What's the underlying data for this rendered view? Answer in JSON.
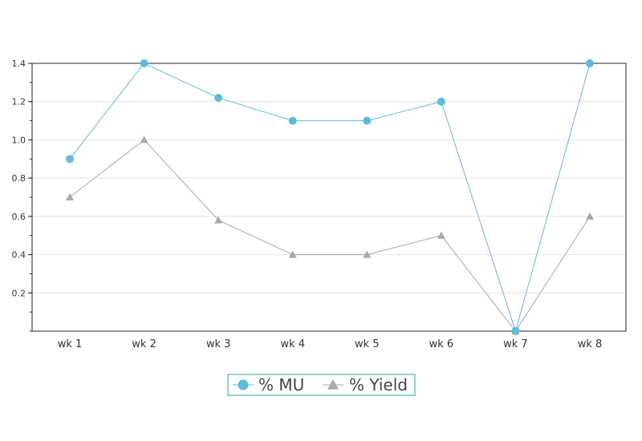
{
  "chart_data": {
    "type": "line",
    "categories": [
      "wk 1",
      "wk 2",
      "wk 3",
      "wk 4",
      "wk 5",
      "wk 6",
      "wk 7",
      "wk 8"
    ],
    "series": [
      {
        "name": "% MU",
        "values": [
          0.9,
          1.4,
          1.22,
          1.1,
          1.1,
          1.2,
          0,
          1.4
        ],
        "color": "#5bbcdd",
        "marker": "circle"
      },
      {
        "name": "% Yield",
        "values": [
          0.7,
          1.0,
          0.58,
          0.4,
          0.4,
          0.5,
          0,
          0.6
        ],
        "color": "#a8a8a8",
        "marker": "triangle"
      }
    ],
    "ylim": [
      0,
      1.4
    ],
    "yticks": [
      "0.2",
      "0.4",
      "0.6",
      "0.8",
      "1.0",
      "1.2",
      "1.4"
    ],
    "grid": true,
    "legend_position": "bottom-center",
    "legend_border_color": "#2aa79b"
  }
}
